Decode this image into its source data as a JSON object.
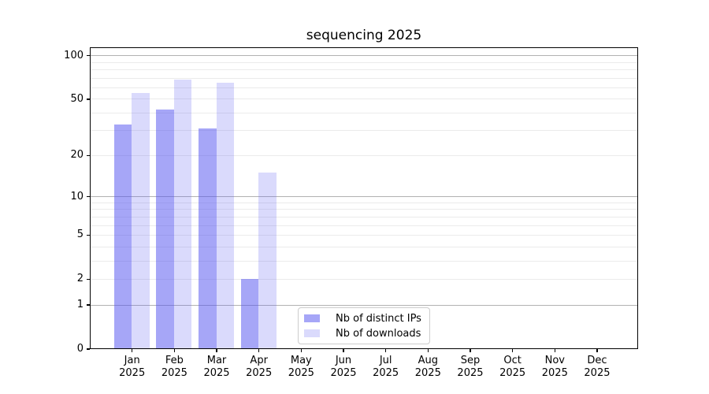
{
  "figure": {
    "background": "#ffffff"
  },
  "chart_data": {
    "type": "bar",
    "title": "sequencing 2025",
    "categories": [
      "Jan",
      "Feb",
      "Mar",
      "Apr",
      "May",
      "Jun",
      "Jul",
      "Aug",
      "Sep",
      "Oct",
      "Nov",
      "Dec"
    ],
    "category_year": "2025",
    "series": [
      {
        "name": "Nb of distinct IPs",
        "values": [
          33,
          42,
          31,
          2,
          0,
          0,
          0,
          0,
          0,
          0,
          0,
          0
        ],
        "fill": "rgba(85,85,240,0.52)",
        "solid_hex": "#a8a8f8"
      },
      {
        "name": "Nb of downloads",
        "values": [
          55,
          68,
          65,
          15,
          0,
          0,
          0,
          0,
          0,
          0,
          0,
          0
        ],
        "fill": "rgba(85,85,240,0.22)",
        "solid_hex": "#d8d8f8"
      }
    ],
    "xlabel": "",
    "ylabel": "",
    "yscale": "log1p",
    "ylim": [
      0,
      114
    ],
    "yticks": [
      0,
      1,
      2,
      5,
      10,
      20,
      50,
      100
    ],
    "grid_major_values": [
      1,
      10,
      100
    ],
    "grid_minor_values": [
      2,
      3,
      4,
      5,
      6,
      7,
      8,
      9,
      20,
      30,
      40,
      50,
      60,
      70,
      80,
      90
    ],
    "legend_position": "lower center",
    "colors": {
      "grid_major": "#b2b2b2",
      "grid_minor": "#ebebeb",
      "axis": "#000000",
      "legend_border": "#cccccc"
    }
  }
}
